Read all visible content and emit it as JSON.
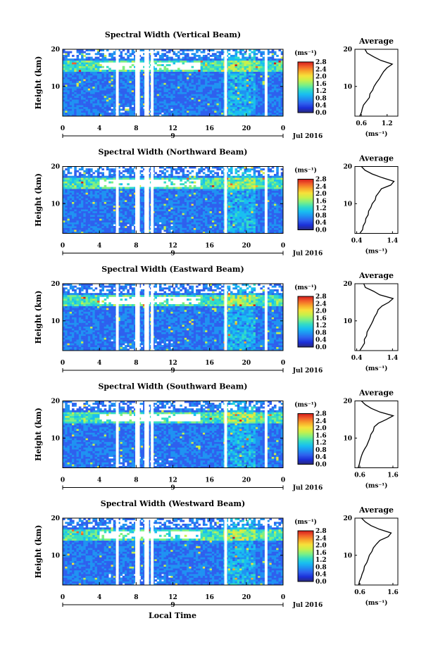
{
  "figure": {
    "xlabel": "Local Time",
    "colors": {
      "colormap": [
        "#2a2a7a",
        "#1b2fd8",
        "#2e60ee",
        "#1f92f2",
        "#18bff0",
        "#34dcc4",
        "#7ef082",
        "#c8f04a",
        "#f7e13a",
        "#f8a62b",
        "#f2602a",
        "#d41c1c"
      ],
      "background": "#ffffff"
    }
  },
  "chart_data": [
    {
      "type": "heatmap",
      "title": "Spectral Width (Vertical Beam)",
      "ylabel": "Height (km)",
      "ylim": [
        2,
        20
      ],
      "yticks": [
        10,
        20
      ],
      "xlim": [
        0,
        24
      ],
      "xticks": [
        "0",
        "4",
        "8",
        "12",
        "16",
        "20",
        "0"
      ],
      "date_marker": "9",
      "date_label": "Jul 2016",
      "data_gaps_hours": [
        [
          5.8,
          6.1
        ],
        [
          7.9,
          8.4
        ],
        [
          8.9,
          9.4
        ],
        [
          9.6,
          9.9
        ],
        [
          17.6,
          17.9
        ],
        [
          22.0,
          22.3
        ]
      ],
      "colorbar": {
        "unit": "(ms⁻¹)",
        "range": [
          0,
          2.8
        ],
        "ticks": [
          "0.0",
          "0.4",
          "0.8",
          "1.2",
          "1.6",
          "2.0",
          "2.4",
          "2.8"
        ]
      },
      "average_profile": {
        "title": "Average",
        "xlabel": "(ms⁻¹)",
        "xlim": [
          0.45,
          1.45
        ],
        "xticks": [
          "0.6",
          "1.2"
        ],
        "yticks": [
          10,
          20
        ],
        "height_km": [
          2,
          3,
          4,
          5,
          6,
          7,
          8,
          9,
          10,
          11,
          12,
          13,
          14,
          15,
          16,
          17,
          18,
          19,
          20
        ],
        "width_ms": [
          0.55,
          0.6,
          0.62,
          0.66,
          0.72,
          0.78,
          0.82,
          0.86,
          0.9,
          0.95,
          1.0,
          1.05,
          1.1,
          1.18,
          1.3,
          1.05,
          0.9,
          0.75,
          0.68
        ]
      }
    },
    {
      "type": "heatmap",
      "title": "Spectral Width (Northward Beam)",
      "ylabel": "Height (km)",
      "ylim": [
        2,
        20
      ],
      "yticks": [
        10,
        20
      ],
      "xlim": [
        0,
        24
      ],
      "xticks": [
        "0",
        "4",
        "8",
        "12",
        "16",
        "20",
        "0"
      ],
      "date_marker": "9",
      "date_label": "Jul 2016",
      "data_gaps_hours": [
        [
          5.8,
          6.1
        ],
        [
          7.9,
          8.4
        ],
        [
          8.9,
          9.4
        ],
        [
          9.6,
          9.9
        ],
        [
          17.6,
          17.9
        ],
        [
          22.0,
          22.3
        ]
      ],
      "colorbar": {
        "unit": "(ms⁻¹)",
        "range": [
          0,
          2.8
        ],
        "ticks": [
          "0.0",
          "0.4",
          "0.8",
          "1.2",
          "1.6",
          "2.0",
          "2.4",
          "2.8"
        ]
      },
      "average_profile": {
        "title": "Average",
        "xlabel": "(ms⁻¹)",
        "xlim": [
          0.35,
          1.55
        ],
        "xticks": [
          "0.4",
          "1.4"
        ],
        "yticks": [
          10,
          20
        ],
        "height_km": [
          2,
          3,
          4,
          5,
          6,
          7,
          8,
          9,
          10,
          11,
          12,
          13,
          14,
          15,
          16,
          17,
          18,
          19,
          20
        ],
        "width_ms": [
          0.5,
          0.55,
          0.6,
          0.62,
          0.66,
          0.7,
          0.75,
          0.8,
          0.85,
          0.9,
          0.95,
          1.0,
          1.1,
          1.35,
          1.45,
          1.1,
          0.85,
          0.65,
          0.55
        ]
      }
    },
    {
      "type": "heatmap",
      "title": "Spectral Width (Eastward Beam)",
      "ylabel": "Height (km)",
      "ylim": [
        2,
        20
      ],
      "yticks": [
        10,
        20
      ],
      "xlim": [
        0,
        24
      ],
      "xticks": [
        "0",
        "4",
        "8",
        "12",
        "16",
        "20",
        "0"
      ],
      "date_marker": "9",
      "date_label": "Jul 2016",
      "data_gaps_hours": [
        [
          5.8,
          6.1
        ],
        [
          7.9,
          8.4
        ],
        [
          8.9,
          9.4
        ],
        [
          9.6,
          9.9
        ],
        [
          17.6,
          17.9
        ],
        [
          22.0,
          22.3
        ]
      ],
      "colorbar": {
        "unit": "(ms⁻¹)",
        "range": [
          0,
          2.8
        ],
        "ticks": [
          "0.0",
          "0.4",
          "0.8",
          "1.2",
          "1.6",
          "2.0",
          "2.4",
          "2.8"
        ]
      },
      "average_profile": {
        "title": "Average",
        "xlabel": "(ms⁻¹)",
        "xlim": [
          0.35,
          1.55
        ],
        "xticks": [
          "0.4",
          "1.4"
        ],
        "yticks": [
          10,
          20
        ],
        "height_km": [
          2,
          3,
          4,
          5,
          6,
          7,
          8,
          9,
          10,
          11,
          12,
          13,
          14,
          15,
          16,
          17,
          18,
          19,
          20
        ],
        "width_ms": [
          0.5,
          0.55,
          0.6,
          0.62,
          0.66,
          0.7,
          0.75,
          0.8,
          0.85,
          0.9,
          0.95,
          1.0,
          1.1,
          1.3,
          1.4,
          1.05,
          0.85,
          0.65,
          0.6
        ]
      }
    },
    {
      "type": "heatmap",
      "title": "Spectral Width (Southward Beam)",
      "ylabel": "Height (km)",
      "ylim": [
        2,
        20
      ],
      "yticks": [
        10,
        20
      ],
      "xlim": [
        0,
        24
      ],
      "xticks": [
        "0",
        "4",
        "8",
        "12",
        "16",
        "20",
        "0"
      ],
      "date_marker": "9",
      "date_label": "Jul 2016",
      "data_gaps_hours": [
        [
          5.8,
          6.1
        ],
        [
          7.9,
          8.4
        ],
        [
          8.9,
          9.4
        ],
        [
          9.6,
          9.9
        ],
        [
          17.6,
          17.9
        ],
        [
          22.0,
          22.3
        ]
      ],
      "colorbar": {
        "unit": "(ms⁻¹)",
        "range": [
          0,
          2.8
        ],
        "ticks": [
          "0.0",
          "0.4",
          "0.8",
          "1.2",
          "1.6",
          "2.0",
          "2.4",
          "2.8"
        ]
      },
      "average_profile": {
        "title": "Average",
        "xlabel": "(ms⁻¹)",
        "xlim": [
          0.45,
          1.75
        ],
        "xticks": [
          "0.6",
          "1.6"
        ],
        "yticks": [
          10,
          20
        ],
        "height_km": [
          2,
          3,
          4,
          5,
          6,
          7,
          8,
          9,
          10,
          11,
          12,
          13,
          14,
          15,
          16,
          17,
          18,
          19,
          20
        ],
        "width_ms": [
          0.55,
          0.6,
          0.62,
          0.66,
          0.7,
          0.75,
          0.8,
          0.85,
          0.9,
          0.95,
          1.0,
          1.05,
          1.15,
          1.4,
          1.6,
          1.2,
          0.95,
          0.75,
          0.65
        ]
      }
    },
    {
      "type": "heatmap",
      "title": "Spectral Width (Westward Beam)",
      "ylabel": "Height (km)",
      "ylim": [
        2,
        20
      ],
      "yticks": [
        10,
        20
      ],
      "xlim": [
        0,
        24
      ],
      "xticks": [
        "0",
        "4",
        "8",
        "12",
        "16",
        "20",
        "0"
      ],
      "date_marker": "9",
      "date_label": "Jul 2016",
      "data_gaps_hours": [
        [
          5.8,
          6.1
        ],
        [
          7.9,
          8.4
        ],
        [
          8.9,
          9.4
        ],
        [
          9.6,
          9.9
        ],
        [
          17.6,
          17.9
        ],
        [
          22.0,
          22.3
        ]
      ],
      "colorbar": {
        "unit": "(ms⁻¹)",
        "range": [
          0,
          2.8
        ],
        "ticks": [
          "0.0",
          "0.4",
          "0.8",
          "1.2",
          "1.6",
          "2.0",
          "2.4",
          "2.8"
        ]
      },
      "average_profile": {
        "title": "Average",
        "xlabel": "(ms⁻¹)",
        "xlim": [
          0.45,
          1.75
        ],
        "xticks": [
          "0.6",
          "1.6"
        ],
        "yticks": [
          10,
          20
        ],
        "height_km": [
          2,
          3,
          4,
          5,
          6,
          7,
          8,
          9,
          10,
          11,
          12,
          13,
          14,
          15,
          16,
          17,
          18,
          19,
          20
        ],
        "width_ms": [
          0.55,
          0.6,
          0.62,
          0.66,
          0.7,
          0.75,
          0.8,
          0.85,
          0.9,
          0.95,
          1.0,
          1.1,
          1.2,
          1.45,
          1.55,
          1.2,
          0.95,
          0.75,
          0.65
        ]
      }
    }
  ]
}
